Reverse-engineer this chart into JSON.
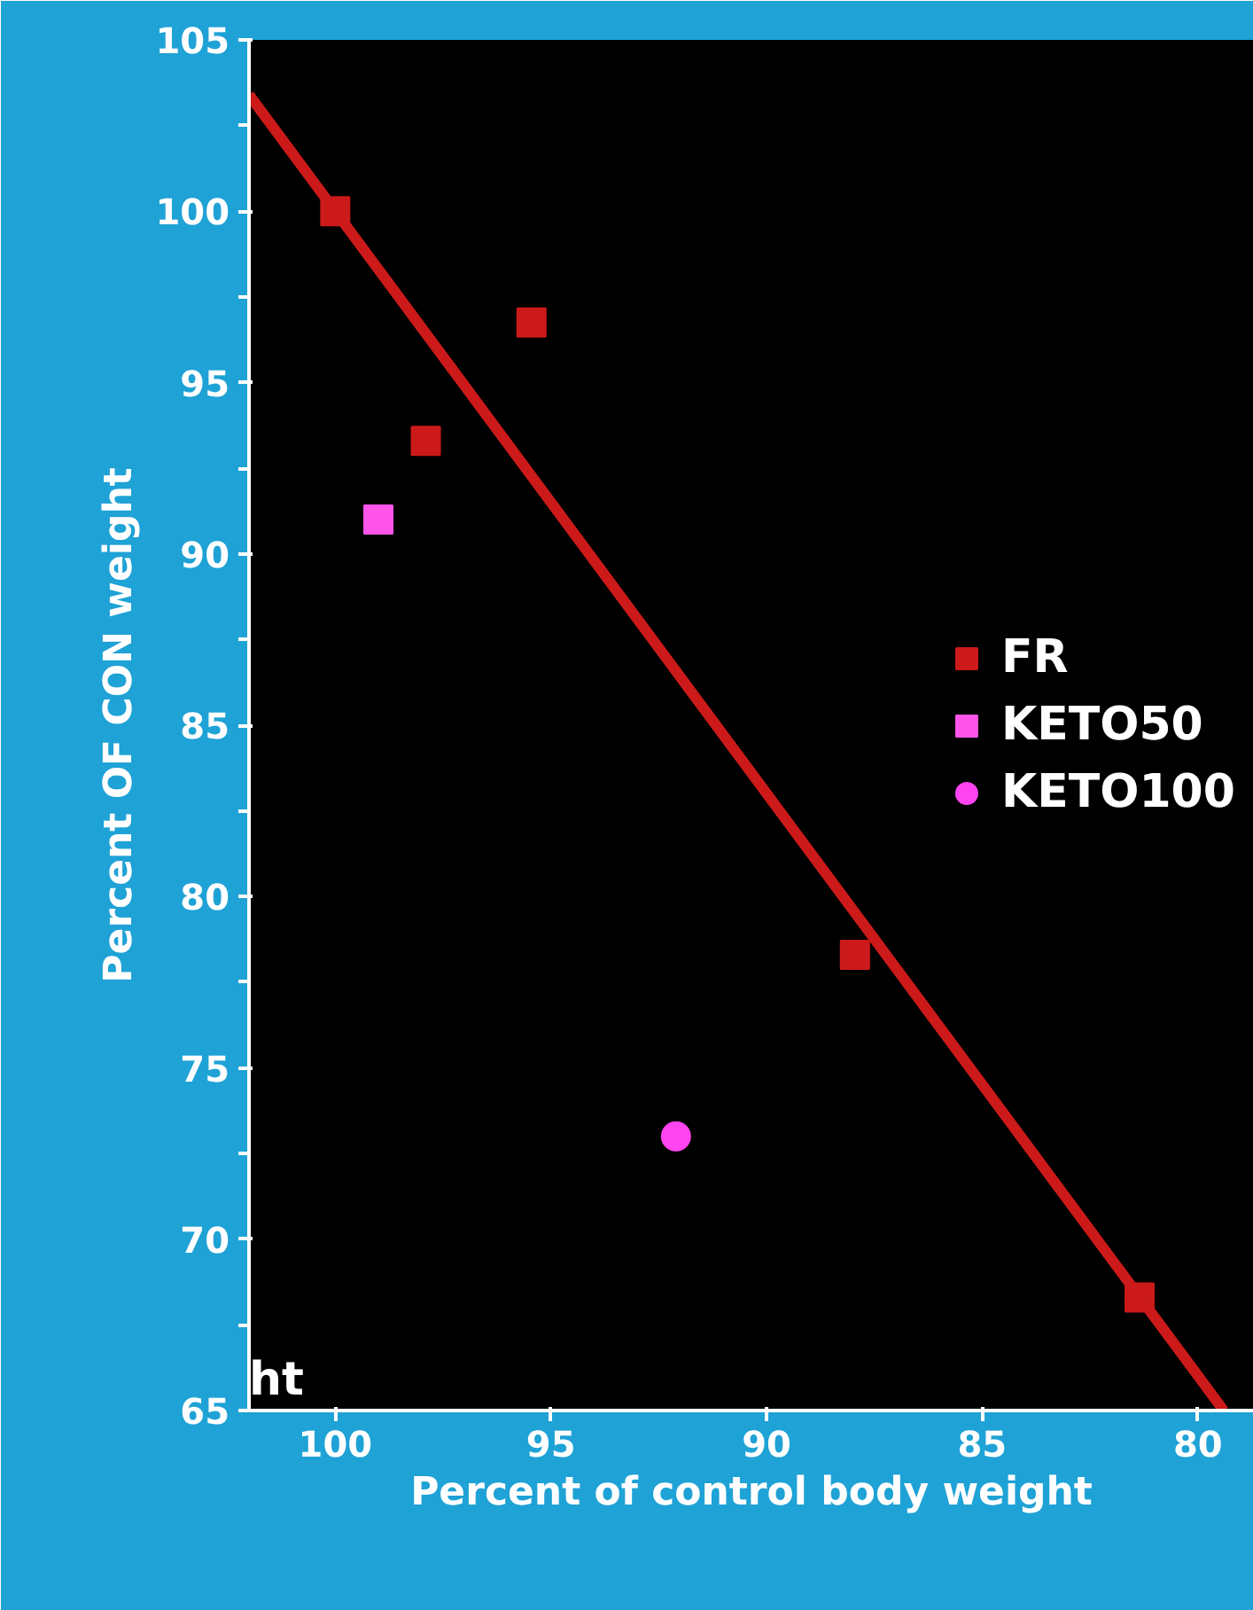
{
  "chart_data": {
    "type": "scatter",
    "xlabel": "Percent of control body weight",
    "ylabel": "Percent OF CON weight",
    "xlim": [
      102,
      78.7
    ],
    "xticks": [
      100,
      95,
      90,
      85,
      80
    ],
    "ylim": [
      65,
      105
    ],
    "yticks": [
      65,
      70,
      75,
      80,
      85,
      90,
      95,
      100,
      105
    ],
    "series": [
      {
        "name": "FR",
        "color": "#cc1a1a",
        "marker": "square",
        "x": [
          100,
          95.45,
          97.9,
          87.95,
          81.35
        ],
        "values": [
          100,
          96.75,
          93.3,
          78.3,
          68.3
        ]
      },
      {
        "name": "KETO50",
        "color": "#ff55e8",
        "marker": "square",
        "x": [
          99.0
        ],
        "values": [
          91.0
        ]
      },
      {
        "name": "KETO100",
        "color": "#ff44f0",
        "marker": "circle",
        "x": [
          92.1
        ],
        "values": [
          73.0
        ]
      },
      {
        "type": "line",
        "color": "#cc1a1a",
        "x": [
          102,
          79.4
        ],
        "values": [
          103.4,
          65.0
        ]
      }
    ],
    "legend": "right",
    "grid": false,
    "annotations": [
      "ht"
    ]
  }
}
